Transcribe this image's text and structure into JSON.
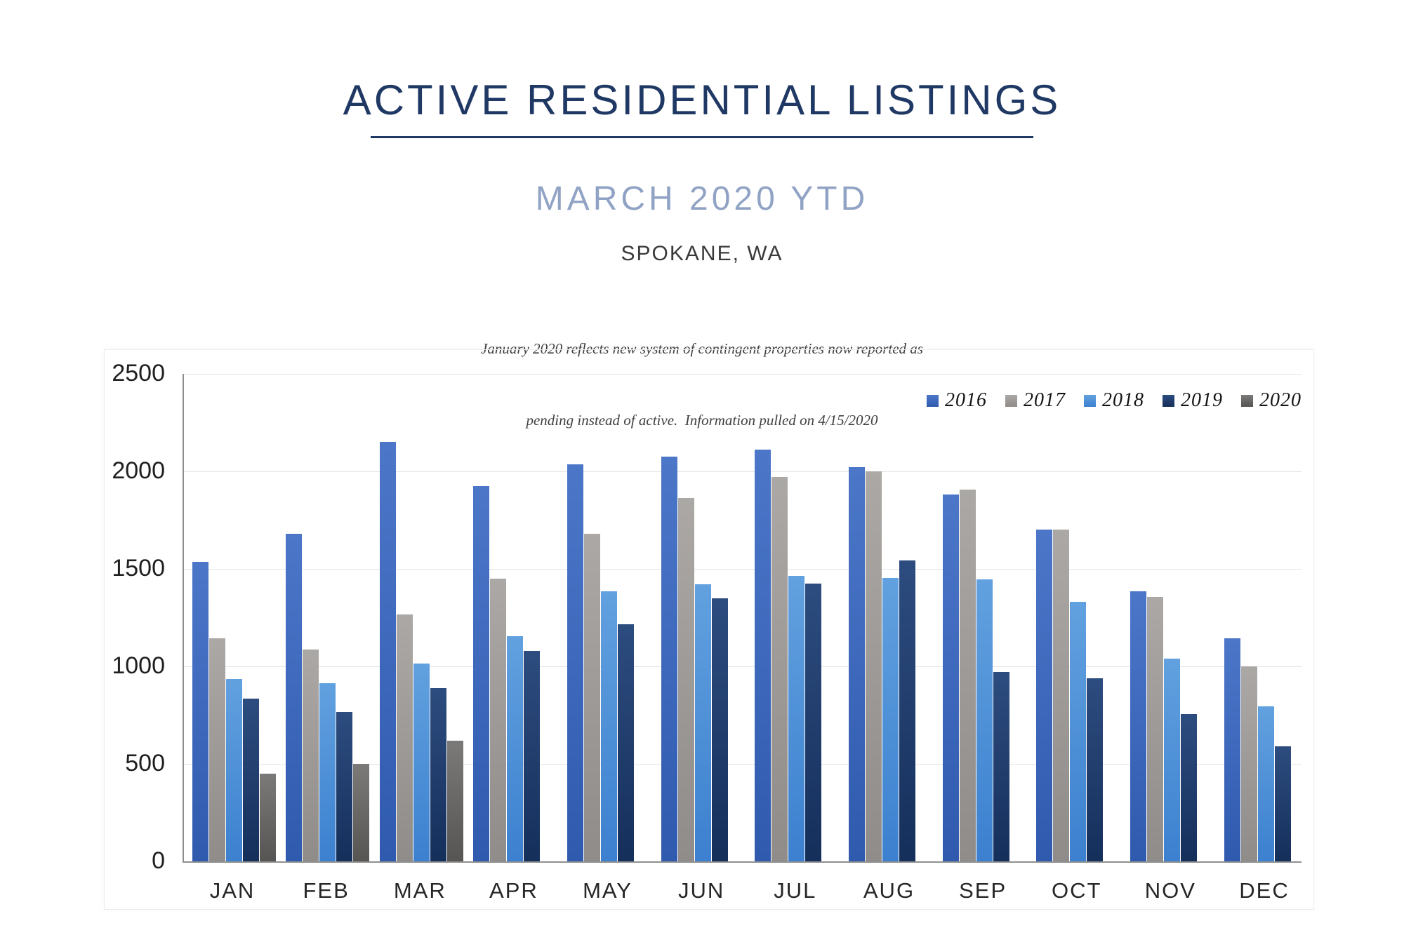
{
  "header": {
    "title": "ACTIVE RESIDENTIAL LISTINGS",
    "subtitle": "MARCH 2020 YTD",
    "location": "SPOKANE, WA",
    "note_lines": [
      "January 2020 reflects new system of contingent properties now reported as",
      "pending instead of active.  Information pulled on 4/15/2020"
    ]
  },
  "colors": {
    "title": "#1F3864",
    "subtitle": "#91A3C4",
    "gridline": "#E3E3E7",
    "axis": "#8F8F8F"
  },
  "chart_data": {
    "type": "bar",
    "title": "",
    "xlabel": "",
    "ylabel": "",
    "ylim": [
      0,
      2500
    ],
    "yticks": [
      0,
      500,
      1000,
      1500,
      2000,
      2500
    ],
    "grid": true,
    "legend_position": "top-right",
    "categories": [
      "JAN",
      "FEB",
      "MAR",
      "APR",
      "MAY",
      "JUN",
      "JUL",
      "AUG",
      "SEP",
      "OCT",
      "NOV",
      "DEC"
    ],
    "series": [
      {
        "name": "2016",
        "color": "#4472C4",
        "gradient_top": "#4C77C9",
        "gradient_bottom": "#2F5AAE",
        "values": [
          1535,
          1680,
          2150,
          1925,
          2035,
          2075,
          2110,
          2020,
          1880,
          1700,
          1385,
          1145
        ]
      },
      {
        "name": "2017",
        "color": "#A5A29F",
        "gradient_top": "#ABA8A5",
        "gradient_bottom": "#8F8C89",
        "values": [
          1145,
          1085,
          1265,
          1450,
          1680,
          1865,
          1970,
          2000,
          1905,
          1700,
          1355,
          1000
        ]
      },
      {
        "name": "2018",
        "color": "#559BDB",
        "gradient_top": "#62A1DF",
        "gradient_bottom": "#3C80CF",
        "values": [
          935,
          915,
          1015,
          1155,
          1385,
          1420,
          1465,
          1455,
          1445,
          1330,
          1040,
          795
        ]
      },
      {
        "name": "2019",
        "color": "#234374",
        "gradient_top": "#2D4C7F",
        "gradient_bottom": "#152F5B",
        "values": [
          835,
          765,
          890,
          1080,
          1215,
          1350,
          1425,
          1545,
          970,
          940,
          755,
          590
        ]
      },
      {
        "name": "2020",
        "color": "#6C6B69",
        "gradient_top": "#7B7A78",
        "gradient_bottom": "#575553",
        "values": [
          450,
          500,
          620,
          null,
          null,
          null,
          null,
          null,
          null,
          null,
          null,
          null
        ]
      }
    ]
  }
}
